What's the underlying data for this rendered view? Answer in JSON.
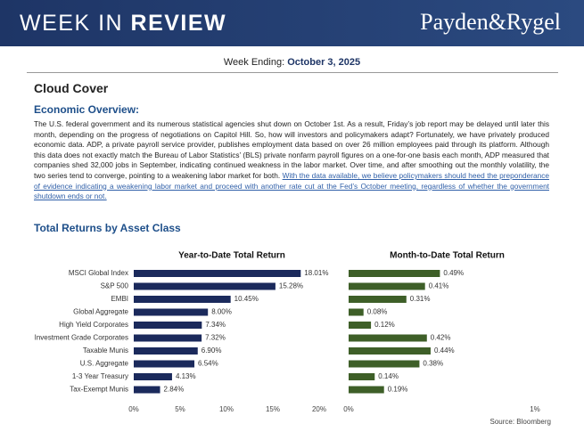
{
  "header": {
    "title_light": "WEEK IN",
    "title_bold": "REVIEW",
    "brand": "Payden&Rygel"
  },
  "week_ending": {
    "label": "Week Ending:",
    "date": "October 3, 2025"
  },
  "article": {
    "title": "Cloud Cover",
    "section": "Economic Overview:",
    "text": "The U.S. federal government and its numerous statistical agencies shut down on October 1st. As a result, Friday’s job report may be delayed until later this month, depending on the progress of negotiations on Capitol Hill. So, how will investors and policymakers adapt? Fortunately, we have privately produced economic data. ADP, a private payroll service provider, publishes employment data based on over 26 million employees paid through its platform. Although this data does not exactly match the Bureau of Labor Statistics’ (BLS) private nonfarm payroll figures on a one-for-one basis each month, ADP measured that companies shed 32,000 jobs in September, indicating continued weakness in the labor market. Over time, and after smoothing out the monthly volatility, the two series tend to converge, pointing to a weakening labor market for both.",
    "link": "With the data available, we believe policymakers should heed the preponderance of evidence indicating a weakening labor market and proceed with another rate cut at the Fed’s October meeting, regardless of whether the government shutdown ends or not."
  },
  "returns_title": "Total Returns by Asset Class",
  "chart_data": [
    {
      "type": "bar",
      "title": "Year-to-Date Total Return",
      "color": "#1b2a5c",
      "categories": [
        "MSCI Global Index",
        "S&P 500",
        "EMBI",
        "Global Aggregate",
        "High Yield Corporates",
        "Investment Grade Corporates",
        "Taxable Munis",
        "U.S. Aggregate",
        "1-3 Year Treasury",
        "Tax-Exempt Munis"
      ],
      "values": [
        18.01,
        15.28,
        10.45,
        8.0,
        7.34,
        7.32,
        6.9,
        6.54,
        4.13,
        2.84
      ],
      "value_labels": [
        "18.01%",
        "15.28%",
        "10.45%",
        "8.00%",
        "7.34%",
        "7.32%",
        "6.90%",
        "6.54%",
        "4.13%",
        "2.84%"
      ],
      "xlim": [
        0,
        20
      ],
      "xticks": [
        {
          "value": 0,
          "label": "0%"
        },
        {
          "value": 5,
          "label": "5%"
        },
        {
          "value": 10,
          "label": "10%"
        },
        {
          "value": 15,
          "label": "15%"
        },
        {
          "value": 20,
          "label": "20%"
        }
      ]
    },
    {
      "type": "bar",
      "title": "Month-to-Date Total Return",
      "color": "#3e5f28",
      "values": [
        0.49,
        0.41,
        0.31,
        0.08,
        0.12,
        0.42,
        0.44,
        0.38,
        0.14,
        0.19
      ],
      "value_labels": [
        "0.49%",
        "0.41%",
        "0.31%",
        "0.08%",
        "0.12%",
        "0.42%",
        "0.44%",
        "0.38%",
        "0.14%",
        "0.19%"
      ],
      "xlim": [
        0,
        1
      ],
      "xticks": [
        {
          "value": 0,
          "label": "0%"
        },
        {
          "value": 1,
          "label": "1%"
        }
      ]
    }
  ],
  "source": "Source: Bloomberg"
}
